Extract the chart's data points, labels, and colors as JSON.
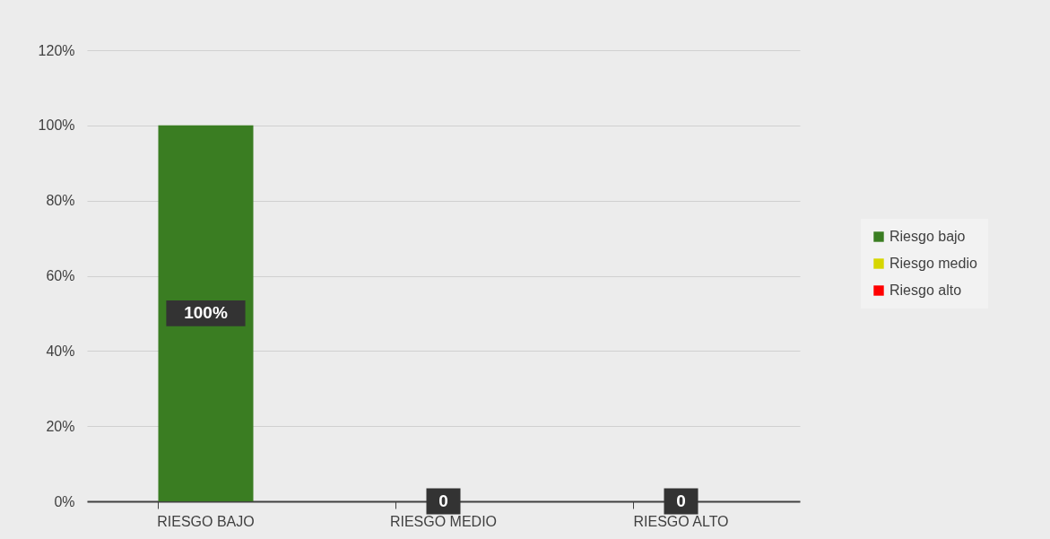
{
  "chart_data": {
    "type": "bar",
    "categories": [
      "RIESGO BAJO",
      "RIESGO MEDIO",
      "RIESGO ALTO"
    ],
    "series": [
      {
        "name": "Riesgo bajo",
        "color": "#3a7d22",
        "values": [
          100,
          null,
          null
        ],
        "value_labels": [
          "100%",
          null,
          null
        ]
      },
      {
        "name": "Riesgo medio",
        "color": "#d6d600",
        "values": [
          null,
          0,
          null
        ],
        "value_labels": [
          null,
          "0",
          null
        ]
      },
      {
        "name": "Riesgo alto",
        "color": "#ff0000",
        "values": [
          null,
          null,
          0
        ],
        "value_labels": [
          null,
          null,
          "0"
        ]
      }
    ],
    "ylim": [
      0,
      120
    ],
    "yticks": [
      {
        "value": 0,
        "label": "0%"
      },
      {
        "value": 20,
        "label": "20%"
      },
      {
        "value": 40,
        "label": "40%"
      },
      {
        "value": 60,
        "label": "60%"
      },
      {
        "value": 80,
        "label": "80%"
      },
      {
        "value": 100,
        "label": "100%"
      },
      {
        "value": 120,
        "label": "120%"
      }
    ],
    "grid": "y",
    "legend": "right"
  }
}
